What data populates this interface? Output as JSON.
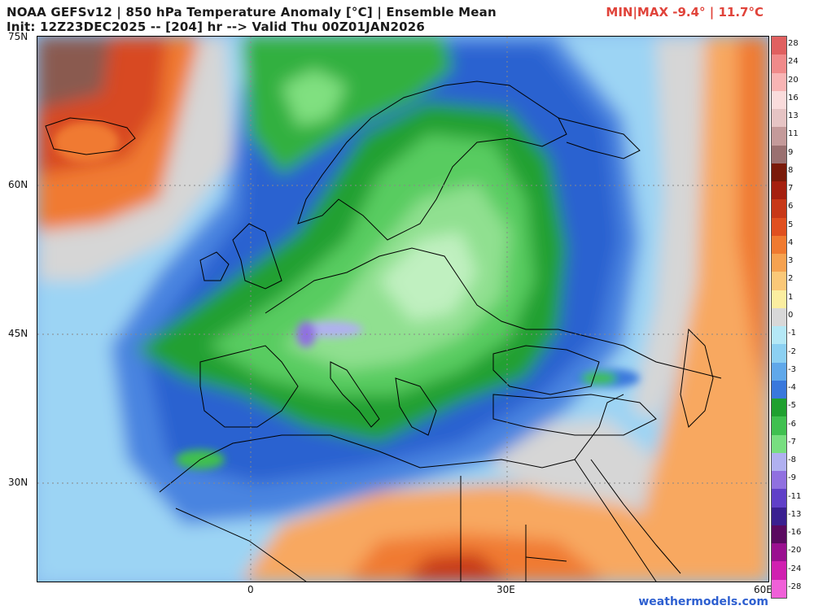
{
  "header": {
    "title_line1": "NOAA GEFSv12 | 850 hPa Temperature Anomaly [°C] | Ensemble Mean",
    "title_line2": "Init: 12Z23DEC2025 -- [204] hr --> Valid Thu 00Z01JAN2026",
    "minmax": "MIN|MAX -9.4° | 11.7°C"
  },
  "axes": {
    "lat_labels": [
      "75N",
      "60N",
      "45N",
      "30N"
    ],
    "lon_labels": [
      "0",
      "30E",
      "60E"
    ]
  },
  "colorbar": {
    "labels": [
      "28",
      "24",
      "20",
      "16",
      "13",
      "11",
      "9",
      "8",
      "7",
      "6",
      "5",
      "4",
      "3",
      "2",
      "1",
      "0",
      "-1",
      "-2",
      "-3",
      "-4",
      "-5",
      "-6",
      "-7",
      "-8",
      "-9",
      "-11",
      "-13",
      "-16",
      "-20",
      "-24",
      "-28"
    ],
    "colors": [
      "#e06060",
      "#f08a8a",
      "#f8b4b4",
      "#fadcdc",
      "#e6c4c4",
      "#c49a9a",
      "#9a7070",
      "#7a1a0a",
      "#a52010",
      "#c83818",
      "#e05020",
      "#f07a30",
      "#f6a250",
      "#fac878",
      "#fbeea0",
      "#d8d8d8",
      "#b4e8f6",
      "#8cd0f2",
      "#60a8ea",
      "#3a78dc",
      "#20a030",
      "#40c050",
      "#78de80",
      "#b0b0f0",
      "#9070e0",
      "#6040c8",
      "#3a2090",
      "#5a0a60",
      "#9a1090",
      "#d020b0",
      "#f060d8"
    ]
  },
  "credit": "weathermodels.com"
}
